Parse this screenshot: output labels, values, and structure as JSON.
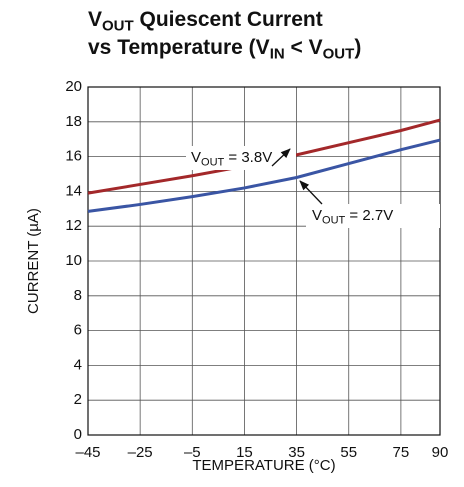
{
  "chart_data": {
    "type": "line",
    "title": [
      [
        {
          "text": "V"
        },
        {
          "text": "OUT",
          "sub": true
        },
        {
          "text": " Quiescent Current"
        }
      ],
      [
        {
          "text": "vs Temperature (V"
        },
        {
          "text": "IN",
          "sub": true
        },
        {
          "text": " < V"
        },
        {
          "text": "OUT",
          "sub": true
        },
        {
          "text": ")"
        }
      ]
    ],
    "x_label": "TEMPERATURE (°C)",
    "y_label": "CURRENT (µA)",
    "x": [
      -45,
      -25,
      -5,
      15,
      35,
      55,
      75,
      90
    ],
    "series": [
      {
        "color": "#a3282a",
        "values": [
          13.9,
          14.4,
          14.9,
          15.45,
          16.1,
          16.8,
          17.5,
          18.1
        ]
      },
      {
        "color": "#3a55a4",
        "values": [
          12.85,
          13.25,
          13.7,
          14.2,
          14.8,
          15.6,
          16.4,
          16.95
        ]
      }
    ],
    "annotations": [
      [
        {
          "text": "V"
        },
        {
          "text": "OUT",
          "sub": true
        },
        {
          "text": " = 3.8V"
        }
      ],
      [
        {
          "text": "V"
        },
        {
          "text": "OUT",
          "sub": true
        },
        {
          "text": " = 2.7V"
        }
      ]
    ],
    "xlim": [
      -45,
      90
    ],
    "xticks": [
      {
        "value": -45,
        "label": "–45"
      },
      {
        "value": -25,
        "label": "–25"
      },
      {
        "value": -5,
        "label": "–5"
      },
      15,
      35,
      55,
      75,
      90
    ],
    "ylim": [
      0,
      20
    ],
    "yticks": [
      0,
      2,
      4,
      6,
      8,
      10,
      12,
      14,
      16,
      18,
      20
    ],
    "grid": true
  }
}
